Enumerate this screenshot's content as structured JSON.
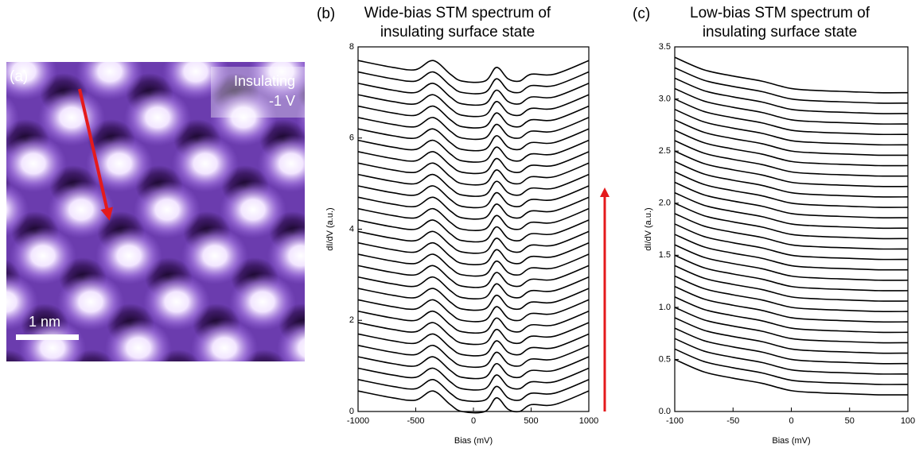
{
  "panel_a": {
    "label": "(a)",
    "annotation": [
      "Insulating",
      "-1 V"
    ],
    "scale_bar": "1 nm"
  },
  "chart_data": [
    {
      "type": "line",
      "panel_label": "(b)",
      "title": [
        "Wide-bias STM spectrum of",
        "insulating surface state"
      ],
      "x_label": "Bias (mV)",
      "y_label": "dI/dV (a.u.)",
      "color": "#000000",
      "xlim": [
        -1000,
        1000
      ],
      "xticks": [
        -1000,
        -500,
        0,
        500,
        1000
      ],
      "ylim": [
        0,
        8
      ],
      "yticks": [
        0,
        2,
        4,
        6,
        8
      ],
      "x": [
        -1000,
        -700,
        -500,
        -350,
        -200,
        -100,
        100,
        200,
        300,
        400,
        500,
        700,
        1000
      ],
      "series": [
        {
          "values": [
            0.45,
            0.3,
            0.25,
            0.45,
            0.15,
            0,
            0,
            0.3,
            0.05,
            0,
            0.15,
            0.15,
            0.45
          ]
        },
        {
          "values": [
            0.7,
            0.55,
            0.5,
            0.7,
            0.4,
            0.25,
            0.25,
            0.55,
            0.3,
            0.25,
            0.4,
            0.4,
            0.7
          ]
        },
        {
          "values": [
            0.95,
            0.8,
            0.75,
            0.95,
            0.65,
            0.5,
            0.5,
            0.8,
            0.55,
            0.5,
            0.65,
            0.65,
            0.95
          ]
        },
        {
          "values": [
            1.2,
            1.05,
            1,
            1.2,
            0.9,
            0.75,
            0.75,
            1.05,
            0.8,
            0.75,
            0.9,
            0.9,
            1.2
          ]
        },
        {
          "values": [
            1.45,
            1.3,
            1.25,
            1.45,
            1.15,
            1,
            1,
            1.3,
            1.05,
            1,
            1.15,
            1.15,
            1.45
          ]
        },
        {
          "values": [
            1.7,
            1.55,
            1.5,
            1.7,
            1.4,
            1.25,
            1.25,
            1.55,
            1.3,
            1.25,
            1.4,
            1.4,
            1.7
          ]
        },
        {
          "values": [
            1.95,
            1.8,
            1.75,
            1.95,
            1.65,
            1.5,
            1.5,
            1.8,
            1.55,
            1.5,
            1.65,
            1.65,
            1.95
          ]
        },
        {
          "values": [
            2.2,
            2.05,
            2,
            2.2,
            1.9,
            1.75,
            1.75,
            2.05,
            1.8,
            1.75,
            1.9,
            1.9,
            2.2
          ]
        },
        {
          "values": [
            2.45,
            2.3,
            2.25,
            2.45,
            2.15,
            2,
            2,
            2.3,
            2.05,
            2,
            2.15,
            2.15,
            2.45
          ]
        },
        {
          "values": [
            2.7,
            2.55,
            2.5,
            2.7,
            2.4,
            2.25,
            2.25,
            2.55,
            2.3,
            2.25,
            2.4,
            2.4,
            2.7
          ]
        },
        {
          "values": [
            2.95,
            2.8,
            2.75,
            2.95,
            2.65,
            2.5,
            2.5,
            2.8,
            2.55,
            2.5,
            2.65,
            2.65,
            2.95
          ]
        },
        {
          "values": [
            3.2,
            3.05,
            3,
            3.2,
            2.9,
            2.75,
            2.75,
            3.05,
            2.8,
            2.75,
            2.9,
            2.9,
            3.2
          ]
        },
        {
          "values": [
            3.45,
            3.3,
            3.25,
            3.45,
            3.15,
            3,
            3,
            3.3,
            3.05,
            3,
            3.15,
            3.15,
            3.45
          ]
        },
        {
          "values": [
            3.7,
            3.55,
            3.5,
            3.7,
            3.4,
            3.25,
            3.25,
            3.55,
            3.3,
            3.25,
            3.4,
            3.4,
            3.7
          ]
        },
        {
          "values": [
            3.95,
            3.8,
            3.75,
            3.95,
            3.65,
            3.5,
            3.5,
            3.8,
            3.55,
            3.5,
            3.65,
            3.65,
            3.95
          ]
        },
        {
          "values": [
            4.2,
            4.05,
            4,
            4.2,
            3.9,
            3.75,
            3.75,
            4.05,
            3.8,
            3.75,
            3.9,
            3.9,
            4.2
          ]
        },
        {
          "values": [
            4.45,
            4.3,
            4.25,
            4.45,
            4.15,
            4,
            4,
            4.3,
            4.05,
            4,
            4.15,
            4.15,
            4.45
          ]
        },
        {
          "values": [
            4.7,
            4.55,
            4.5,
            4.7,
            4.4,
            4.25,
            4.25,
            4.55,
            4.3,
            4.25,
            4.4,
            4.4,
            4.7
          ]
        },
        {
          "values": [
            4.95,
            4.8,
            4.75,
            4.95,
            4.65,
            4.5,
            4.5,
            4.8,
            4.55,
            4.5,
            4.65,
            4.65,
            4.95
          ]
        },
        {
          "values": [
            5.2,
            5.05,
            5,
            5.2,
            4.9,
            4.75,
            4.75,
            5.05,
            4.8,
            4.75,
            4.9,
            4.9,
            5.2
          ]
        },
        {
          "values": [
            5.45,
            5.3,
            5.25,
            5.45,
            5.15,
            5,
            5,
            5.3,
            5.05,
            5,
            5.15,
            5.15,
            5.45
          ]
        },
        {
          "values": [
            5.7,
            5.55,
            5.5,
            5.7,
            5.4,
            5.25,
            5.25,
            5.55,
            5.3,
            5.25,
            5.4,
            5.4,
            5.7
          ]
        },
        {
          "values": [
            5.95,
            5.8,
            5.75,
            5.95,
            5.65,
            5.5,
            5.5,
            5.8,
            5.55,
            5.5,
            5.65,
            5.65,
            5.95
          ]
        },
        {
          "values": [
            6.2,
            6.05,
            6,
            6.2,
            5.9,
            5.75,
            5.75,
            6.05,
            5.8,
            5.75,
            5.9,
            5.9,
            6.2
          ]
        },
        {
          "values": [
            6.45,
            6.3,
            6.25,
            6.45,
            6.15,
            6,
            6,
            6.3,
            6.05,
            6,
            6.15,
            6.15,
            6.45
          ]
        },
        {
          "values": [
            6.7,
            6.55,
            6.5,
            6.7,
            6.4,
            6.25,
            6.25,
            6.55,
            6.3,
            6.25,
            6.4,
            6.4,
            6.7
          ]
        },
        {
          "values": [
            6.95,
            6.8,
            6.75,
            6.95,
            6.65,
            6.5,
            6.5,
            6.8,
            6.55,
            6.5,
            6.65,
            6.65,
            6.95
          ]
        },
        {
          "values": [
            7.2,
            7.05,
            7,
            7.2,
            6.9,
            6.75,
            6.75,
            7.05,
            6.8,
            6.75,
            6.9,
            6.9,
            7.2
          ]
        },
        {
          "values": [
            7.45,
            7.3,
            7.25,
            7.45,
            7.15,
            7,
            7,
            7.3,
            7.05,
            7,
            7.15,
            7.15,
            7.45
          ]
        },
        {
          "values": [
            7.7,
            7.55,
            7.5,
            7.7,
            7.4,
            7.25,
            7.25,
            7.55,
            7.3,
            7.25,
            7.4,
            7.4,
            7.7
          ]
        }
      ]
    },
    {
      "type": "line",
      "panel_label": "(c)",
      "title": [
        "Low-bias STM spectrum of",
        "insulating surface state"
      ],
      "x_label": "Bias (mV)",
      "y_label": "dI/dV (a.u.)",
      "color": "#000000",
      "xlim": [
        -100,
        100
      ],
      "xticks": [
        -100,
        -50,
        0,
        50,
        100
      ],
      "ylim": [
        0,
        3.5
      ],
      "yticks": [
        {
          "value": 0,
          "label": "0.0"
        },
        0.5,
        {
          "value": 1,
          "label": "1.0"
        },
        1.5,
        {
          "value": 2,
          "label": "2.0"
        },
        2.5,
        {
          "value": 3,
          "label": "3.0"
        },
        3.5
      ],
      "x": [
        -100,
        -75,
        -50,
        -25,
        0,
        25,
        50,
        75,
        100
      ],
      "series": [
        {
          "values": [
            0.5,
            0.38,
            0.32,
            0.27,
            0.2,
            0.18,
            0.17,
            0.16,
            0.16
          ]
        },
        {
          "values": [
            0.6,
            0.48,
            0.42,
            0.37,
            0.3,
            0.28,
            0.27,
            0.26,
            0.26
          ]
        },
        {
          "values": [
            0.7,
            0.58,
            0.52,
            0.47,
            0.4,
            0.38,
            0.37,
            0.36,
            0.36
          ]
        },
        {
          "values": [
            0.8,
            0.68,
            0.62,
            0.57,
            0.5,
            0.48,
            0.47,
            0.46,
            0.46
          ]
        },
        {
          "values": [
            0.9,
            0.78,
            0.72,
            0.67,
            0.6,
            0.58,
            0.57,
            0.56,
            0.56
          ]
        },
        {
          "values": [
            1,
            0.88,
            0.82,
            0.77,
            0.7,
            0.68,
            0.67,
            0.66,
            0.66
          ]
        },
        {
          "values": [
            1.1,
            0.98,
            0.92,
            0.87,
            0.8,
            0.78,
            0.77,
            0.76,
            0.76
          ]
        },
        {
          "values": [
            1.2,
            1.08,
            1.02,
            0.97,
            0.9,
            0.88,
            0.87,
            0.86,
            0.86
          ]
        },
        {
          "values": [
            1.3,
            1.18,
            1.12,
            1.07,
            1,
            0.98,
            0.97,
            0.96,
            0.96
          ]
        },
        {
          "values": [
            1.4,
            1.28,
            1.22,
            1.17,
            1.1,
            1.08,
            1.07,
            1.06,
            1.06
          ]
        },
        {
          "values": [
            1.5,
            1.38,
            1.32,
            1.27,
            1.2,
            1.18,
            1.17,
            1.16,
            1.16
          ]
        },
        {
          "values": [
            1.6,
            1.48,
            1.42,
            1.37,
            1.3,
            1.28,
            1.27,
            1.26,
            1.26
          ]
        },
        {
          "values": [
            1.7,
            1.58,
            1.52,
            1.47,
            1.4,
            1.38,
            1.37,
            1.36,
            1.36
          ]
        },
        {
          "values": [
            1.8,
            1.68,
            1.62,
            1.57,
            1.5,
            1.48,
            1.47,
            1.46,
            1.46
          ]
        },
        {
          "values": [
            1.9,
            1.78,
            1.72,
            1.67,
            1.6,
            1.58,
            1.57,
            1.56,
            1.56
          ]
        },
        {
          "values": [
            2,
            1.88,
            1.82,
            1.77,
            1.7,
            1.68,
            1.67,
            1.66,
            1.66
          ]
        },
        {
          "values": [
            2.1,
            1.98,
            1.92,
            1.87,
            1.8,
            1.78,
            1.77,
            1.76,
            1.76
          ]
        },
        {
          "values": [
            2.2,
            2.08,
            2.02,
            1.97,
            1.9,
            1.88,
            1.87,
            1.86,
            1.86
          ]
        },
        {
          "values": [
            2.3,
            2.18,
            2.12,
            2.07,
            2,
            1.98,
            1.97,
            1.96,
            1.96
          ]
        },
        {
          "values": [
            2.4,
            2.28,
            2.22,
            2.17,
            2.1,
            2.08,
            2.07,
            2.06,
            2.06
          ]
        },
        {
          "values": [
            2.5,
            2.38,
            2.32,
            2.27,
            2.2,
            2.18,
            2.17,
            2.16,
            2.16
          ]
        },
        {
          "values": [
            2.6,
            2.48,
            2.42,
            2.37,
            2.3,
            2.28,
            2.27,
            2.26,
            2.26
          ]
        },
        {
          "values": [
            2.7,
            2.58,
            2.52,
            2.47,
            2.4,
            2.38,
            2.37,
            2.36,
            2.36
          ]
        },
        {
          "values": [
            2.8,
            2.68,
            2.62,
            2.57,
            2.5,
            2.48,
            2.47,
            2.46,
            2.46
          ]
        },
        {
          "values": [
            2.9,
            2.78,
            2.72,
            2.67,
            2.6,
            2.58,
            2.57,
            2.56,
            2.56
          ]
        },
        {
          "values": [
            3,
            2.88,
            2.82,
            2.77,
            2.7,
            2.68,
            2.67,
            2.66,
            2.66
          ]
        },
        {
          "values": [
            3.1,
            2.98,
            2.92,
            2.87,
            2.8,
            2.78,
            2.77,
            2.76,
            2.76
          ]
        },
        {
          "values": [
            3.2,
            3.08,
            3.02,
            2.97,
            2.9,
            2.88,
            2.87,
            2.86,
            2.86
          ]
        },
        {
          "values": [
            3.3,
            3.18,
            3.12,
            3.07,
            3,
            2.98,
            2.97,
            2.96,
            2.96
          ]
        },
        {
          "values": [
            3.4,
            3.28,
            3.22,
            3.17,
            3.1,
            3.08,
            3.07,
            3.06,
            3.06
          ]
        }
      ]
    }
  ]
}
